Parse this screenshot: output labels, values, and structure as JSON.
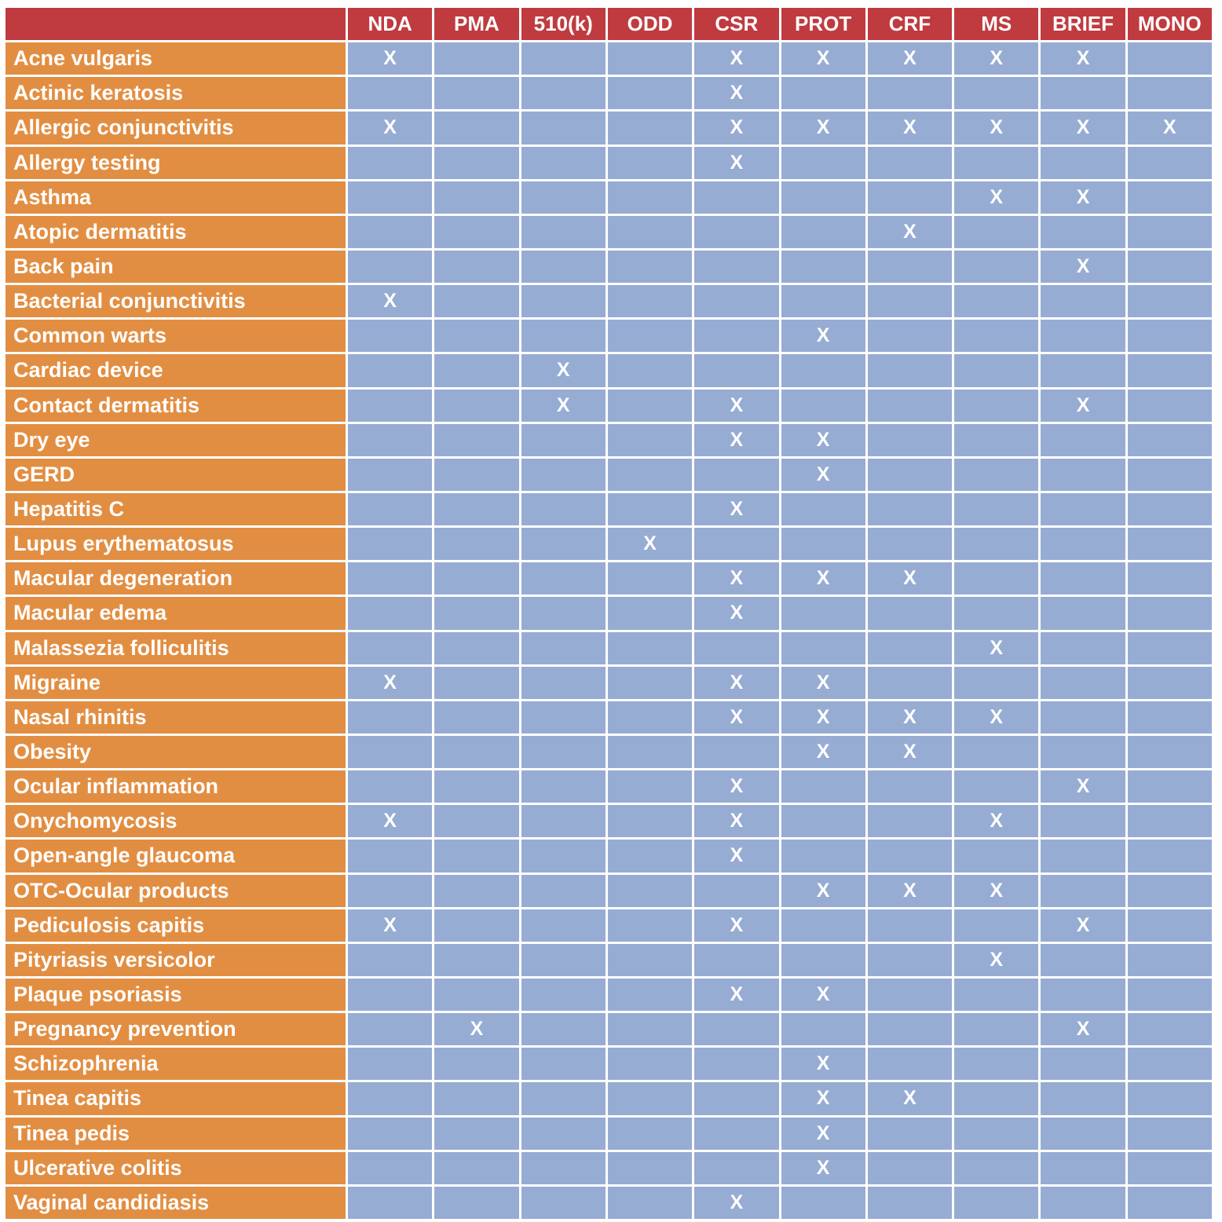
{
  "chart_data": {
    "type": "table",
    "corner_label": "",
    "mark_symbol": "X",
    "columns": [
      "NDA",
      "PMA",
      "510(k)",
      "ODD",
      "CSR",
      "PROT",
      "CRF",
      "MS",
      "BRIEF",
      "MONO"
    ],
    "rows": [
      {
        "label": "Acne vulgaris",
        "marks": [
          "NDA",
          "CSR",
          "PROT",
          "CRF",
          "MS",
          "BRIEF"
        ]
      },
      {
        "label": "Actinic keratosis",
        "marks": [
          "CSR"
        ]
      },
      {
        "label": "Allergic conjunctivitis",
        "marks": [
          "NDA",
          "CSR",
          "PROT",
          "CRF",
          "MS",
          "BRIEF",
          "MONO"
        ]
      },
      {
        "label": "Allergy testing",
        "marks": [
          "CSR"
        ]
      },
      {
        "label": "Asthma",
        "marks": [
          "MS",
          "BRIEF"
        ]
      },
      {
        "label": "Atopic dermatitis",
        "marks": [
          "CRF"
        ]
      },
      {
        "label": "Back pain",
        "marks": [
          "BRIEF"
        ]
      },
      {
        "label": "Bacterial conjunctivitis",
        "marks": [
          "NDA"
        ]
      },
      {
        "label": "Common warts",
        "marks": [
          "PROT"
        ]
      },
      {
        "label": "Cardiac device",
        "marks": [
          "510(k)"
        ]
      },
      {
        "label": "Contact dermatitis",
        "marks": [
          "510(k)",
          "CSR",
          "BRIEF"
        ]
      },
      {
        "label": "Dry eye",
        "marks": [
          "CSR",
          "PROT"
        ]
      },
      {
        "label": "GERD",
        "marks": [
          "PROT"
        ]
      },
      {
        "label": "Hepatitis C",
        "marks": [
          "CSR"
        ]
      },
      {
        "label": "Lupus erythematosus",
        "marks": [
          "ODD"
        ]
      },
      {
        "label": "Macular degeneration",
        "marks": [
          "CSR",
          "PROT",
          "CRF"
        ]
      },
      {
        "label": "Macular edema",
        "marks": [
          "CSR"
        ]
      },
      {
        "label": "Malassezia folliculitis",
        "marks": [
          "MS"
        ]
      },
      {
        "label": "Migraine",
        "marks": [
          "NDA",
          "CSR",
          "PROT"
        ]
      },
      {
        "label": "Nasal rhinitis",
        "marks": [
          "CSR",
          "PROT",
          "CRF",
          "MS"
        ]
      },
      {
        "label": "Obesity",
        "marks": [
          "PROT",
          "CRF"
        ]
      },
      {
        "label": "Ocular inflammation",
        "marks": [
          "CSR",
          "BRIEF"
        ]
      },
      {
        "label": "Onychomycosis",
        "marks": [
          "NDA",
          "CSR",
          "MS"
        ]
      },
      {
        "label": "Open-angle glaucoma",
        "marks": [
          "CSR"
        ]
      },
      {
        "label": "OTC-Ocular products",
        "marks": [
          "PROT",
          "CRF",
          "MS"
        ]
      },
      {
        "label": "Pediculosis capitis",
        "marks": [
          "NDA",
          "CSR",
          "BRIEF"
        ]
      },
      {
        "label": "Pityriasis versicolor",
        "marks": [
          "MS"
        ]
      },
      {
        "label": "Plaque psoriasis",
        "marks": [
          "CSR",
          "PROT"
        ]
      },
      {
        "label": "Pregnancy prevention",
        "marks": [
          "PMA",
          "BRIEF"
        ]
      },
      {
        "label": "Schizophrenia",
        "marks": [
          "PROT"
        ]
      },
      {
        "label": "Tinea capitis",
        "marks": [
          "PROT",
          "CRF"
        ]
      },
      {
        "label": "Tinea pedis",
        "marks": [
          "PROT"
        ]
      },
      {
        "label": "Ulcerative colitis",
        "marks": [
          "PROT"
        ]
      },
      {
        "label": "Vaginal candidiasis",
        "marks": [
          "CSR"
        ]
      }
    ],
    "colors": {
      "header_bg": "#bf3b40",
      "row_label_bg": "#e28e42",
      "cell_bg": "#97acd3",
      "grid_color": "#ffffff",
      "text_color": "#ffffff"
    }
  }
}
